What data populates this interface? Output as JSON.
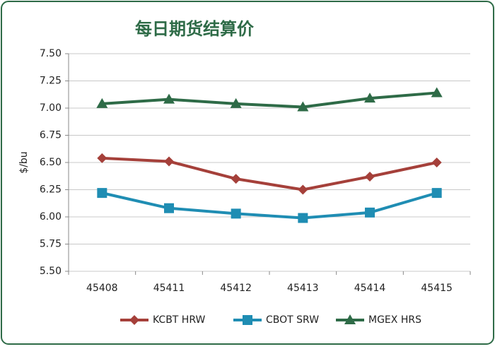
{
  "chart_data": {
    "type": "line",
    "title": "每日期货结算价",
    "y_label": "$/bu",
    "categories": [
      "45408",
      "45411",
      "45412",
      "45413",
      "45414",
      "45415"
    ],
    "series": [
      {
        "name": "KCBT HRW",
        "color": "#a5403a",
        "marker": "diamond",
        "values": [
          6.54,
          6.51,
          6.35,
          6.25,
          6.37,
          6.5
        ]
      },
      {
        "name": "CBOT SRW",
        "color": "#1f8db3",
        "marker": "square",
        "values": [
          6.22,
          6.08,
          6.03,
          5.99,
          6.04,
          6.22
        ]
      },
      {
        "name": "MGEX HRS",
        "color": "#2e6b47",
        "marker": "triangle",
        "values": [
          7.04,
          7.08,
          7.04,
          7.01,
          7.09,
          7.14
        ]
      }
    ],
    "ylim": [
      5.5,
      7.5
    ],
    "yticks": [
      {
        "value": 5.5,
        "label": "5.50"
      },
      5.75,
      {
        "value": 6,
        "label": "6.00"
      },
      6.25,
      {
        "value": 6.5,
        "label": "6.50"
      },
      6.75,
      {
        "value": 7,
        "label": "7.00"
      },
      7.25,
      {
        "value": 7.5,
        "label": "7.50"
      }
    ],
    "grid": true,
    "legend": "bottom"
  }
}
